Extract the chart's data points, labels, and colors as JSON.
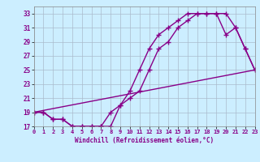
{
  "xlabel": "Windchill (Refroidissement éolien,°C)",
  "xlim": [
    0,
    23
  ],
  "ylim": [
    17,
    34
  ],
  "xticks": [
    0,
    1,
    2,
    3,
    4,
    5,
    6,
    7,
    8,
    9,
    10,
    11,
    12,
    13,
    14,
    15,
    16,
    17,
    18,
    19,
    20,
    21,
    22,
    23
  ],
  "yticks": [
    17,
    19,
    21,
    23,
    25,
    27,
    29,
    31,
    33
  ],
  "bg_color": "#cceeff",
  "line_color": "#880088",
  "line1_x": [
    0,
    1,
    2,
    3,
    4,
    5,
    6,
    7,
    8,
    9,
    10,
    11,
    12,
    13,
    14,
    15,
    16,
    17,
    18,
    19,
    20,
    21,
    22,
    23
  ],
  "line1_y": [
    19,
    19,
    18,
    18,
    17,
    17,
    17,
    17,
    17,
    20,
    21,
    22,
    25,
    28,
    29,
    31,
    32,
    33,
    33,
    33,
    33,
    31,
    28,
    25
  ],
  "line2_x": [
    0,
    1,
    2,
    3,
    4,
    5,
    6,
    7,
    8,
    9,
    10,
    11,
    12,
    13,
    14,
    15,
    16,
    17,
    18,
    19,
    20,
    21,
    22,
    23
  ],
  "line2_y": [
    19,
    19,
    18,
    18,
    17,
    17,
    17,
    17,
    19,
    20,
    22,
    25,
    28,
    30,
    31,
    32,
    33,
    33,
    33,
    33,
    30,
    31,
    28,
    25
  ],
  "line3_x": [
    0,
    23
  ],
  "line3_y": [
    19,
    25
  ],
  "marker": "+"
}
